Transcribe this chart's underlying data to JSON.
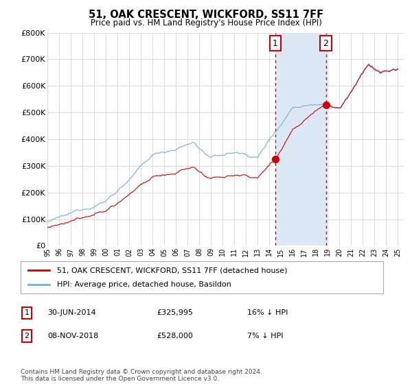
{
  "title": "51, OAK CRESCENT, WICKFORD, SS11 7FF",
  "subtitle": "Price paid vs. HM Land Registry's House Price Index (HPI)",
  "ylabel_ticks": [
    "£0",
    "£100K",
    "£200K",
    "£300K",
    "£400K",
    "£500K",
    "£600K",
    "£700K",
    "£800K"
  ],
  "ylim": [
    0,
    800000
  ],
  "xlim_start": 1995,
  "xlim_end": 2025.5,
  "sale1_x": 2014.5,
  "sale1_y": 325995,
  "sale1_date": "30-JUN-2014",
  "sale1_price": "£325,995",
  "sale1_label": "16% ↓ HPI",
  "sale2_x": 2018.83,
  "sale2_y": 528000,
  "sale2_date": "08-NOV-2018",
  "sale2_price": "£528,000",
  "sale2_label": "7% ↓ HPI",
  "sale_color": "#cc0000",
  "hpi_color": "#7aadd4",
  "vline_color": "#cc0000",
  "span_color": "#dce8f5",
  "grid_color": "#cccccc",
  "bg_color": "#ffffff",
  "legend1": "51, OAK CRESCENT, WICKFORD, SS11 7FF (detached house)",
  "legend2": "HPI: Average price, detached house, Basildon",
  "footer": "Contains HM Land Registry data © Crown copyright and database right 2024.\nThis data is licensed under the Open Government Licence v3.0."
}
